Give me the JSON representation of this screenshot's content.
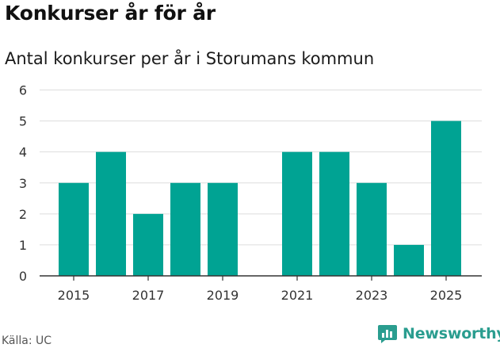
{
  "header": {
    "title": "Konkurser år för år",
    "subtitle": "Antal konkurser per år i Storumans kommun"
  },
  "footer": {
    "source": "Källa: UC",
    "brand": "Newsworthy"
  },
  "colors": {
    "bar": "#00a393",
    "grid": "#dddddd",
    "brand": "#2a9d8f"
  },
  "icons": {
    "brand_logo": "chat-bubble-bar-chart-icon"
  },
  "chart_data": {
    "type": "bar",
    "categories": [
      "2015",
      "2016",
      "2017",
      "2018",
      "2019",
      "2020",
      "2021",
      "2022",
      "2023",
      "2024",
      "2025"
    ],
    "values": [
      3,
      4,
      2,
      3,
      3,
      0,
      4,
      4,
      3,
      1,
      5
    ],
    "x_tick_labels": [
      "2015",
      "2017",
      "2019",
      "2021",
      "2023",
      "2025"
    ],
    "y_ticks": [
      0,
      1,
      2,
      3,
      4,
      5,
      6
    ],
    "ylim": [
      0,
      6
    ],
    "grid": true,
    "legend": "none"
  }
}
